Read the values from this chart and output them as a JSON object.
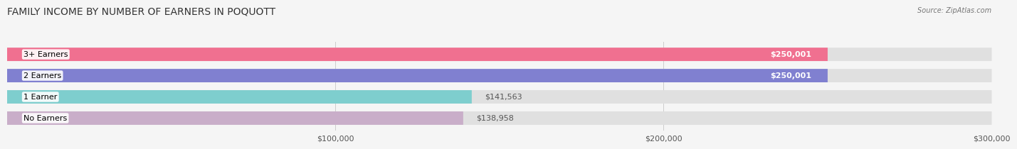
{
  "title": "FAMILY INCOME BY NUMBER OF EARNERS IN POQUOTT",
  "source": "Source: ZipAtlas.com",
  "categories": [
    "No Earners",
    "1 Earner",
    "2 Earners",
    "3+ Earners"
  ],
  "values": [
    138958,
    141563,
    250001,
    250001
  ],
  "bar_colors": [
    "#c9aec9",
    "#7ecece",
    "#8080d0",
    "#f07090"
  ],
  "bar_labels": [
    "$138,958",
    "$141,563",
    "$250,001",
    "$250,001"
  ],
  "label_inside": [
    false,
    false,
    true,
    true
  ],
  "xlim": [
    0,
    300000
  ],
  "xticks": [
    100000,
    200000,
    300000
  ],
  "xtick_labels": [
    "$100,000",
    "$200,000",
    "$300,000"
  ],
  "background_color": "#f5f5f5",
  "bar_bg_color": "#e0e0e0",
  "title_fontsize": 10,
  "label_fontsize": 8,
  "axis_fontsize": 8
}
